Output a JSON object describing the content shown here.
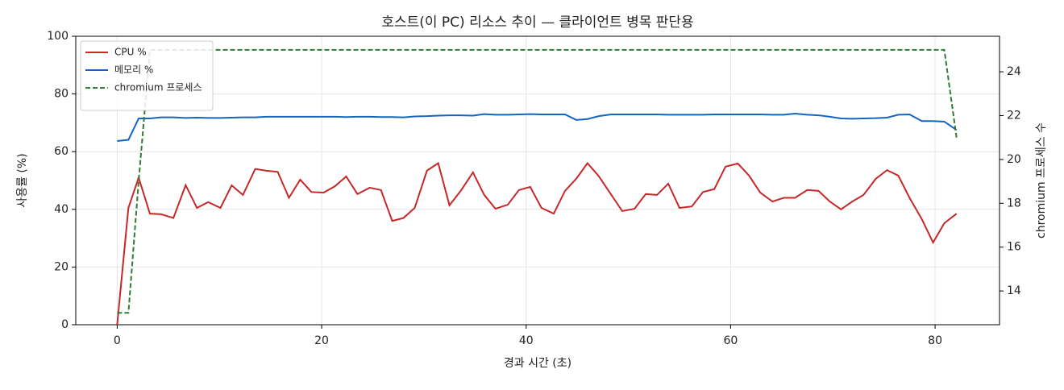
{
  "chart_data": {
    "type": "line",
    "title": "호스트(이 PC) 리소스 추이 — 클라이언트 병목 판단용",
    "xlabel": "경과 시간 (초)",
    "ylabel": "사용률 (%)",
    "y2label": "chromium 프로세스 수",
    "x": [
      0,
      1.1,
      2.1,
      3.2,
      4.3,
      5.5,
      6.7,
      7.8,
      8.9,
      10.1,
      11.2,
      12.3,
      13.5,
      14.6,
      15.7,
      16.8,
      17.9,
      19,
      20.2,
      21.3,
      22.4,
      23.5,
      24.7,
      25.8,
      26.9,
      28,
      29.1,
      30.3,
      31.4,
      32.5,
      33.6,
      34.8,
      35.9,
      37,
      38.2,
      39.3,
      40.4,
      41.5,
      42.7,
      43.8,
      44.9,
      46,
      47.1,
      48.3,
      49.4,
      50.6,
      51.7,
      52.8,
      53.9,
      55,
      56.2,
      57.3,
      58.4,
      59.5,
      60.7,
      61.8,
      62.9,
      64.1,
      65.2,
      66.3,
      67.5,
      68.6,
      69.7,
      70.8,
      71.9,
      73,
      74.2,
      75.3,
      76.4,
      77.5,
      78.7,
      79.8,
      80.9,
      82.1
    ],
    "series": [
      {
        "name": "CPU %",
        "color": "#c62828",
        "values": [
          0,
          40.5,
          51,
          38.5,
          38.3,
          37,
          48.4,
          40.5,
          42.5,
          40.5,
          48.3,
          45,
          54,
          53.4,
          53,
          44,
          50.3,
          46,
          45.8,
          48,
          51.4,
          45.3,
          47.5,
          46.7,
          36,
          37,
          40.5,
          53.4,
          56,
          41.4,
          46.4,
          52.8,
          45,
          40.2,
          41.6,
          46.7,
          47.8,
          40.5,
          38.5,
          46.4,
          50.6,
          56,
          51.5,
          45.2,
          39.4,
          40.2,
          45.3,
          45,
          48.9,
          40.5,
          41,
          46,
          47,
          54.8,
          55.9,
          51.7,
          45.8,
          42.7,
          44,
          44,
          46.7,
          46.4,
          42.7,
          40,
          42.7,
          45,
          50.6,
          53.6,
          51.7,
          44,
          36.6,
          28.5,
          35.2,
          38.5
        ]
      },
      {
        "name": "메모리 %",
        "color": "#1565c0",
        "values": [
          63.7,
          64.1,
          71.5,
          71.5,
          71.9,
          71.9,
          71.7,
          71.8,
          71.7,
          71.7,
          71.8,
          71.9,
          71.9,
          72.1,
          72.1,
          72.1,
          72.1,
          72.1,
          72.1,
          72.1,
          72,
          72.1,
          72.1,
          72,
          72,
          71.9,
          72.2,
          72.3,
          72.5,
          72.6,
          72.6,
          72.5,
          73,
          72.8,
          72.8,
          72.9,
          73,
          72.9,
          72.9,
          72.9,
          71,
          71.3,
          72.3,
          72.9,
          72.9,
          72.9,
          72.9,
          72.9,
          72.8,
          72.8,
          72.8,
          72.8,
          72.9,
          72.9,
          72.9,
          72.9,
          72.9,
          72.8,
          72.8,
          73.2,
          72.8,
          72.6,
          72.1,
          71.5,
          71.4,
          71.5,
          71.6,
          71.8,
          72.8,
          72.9,
          70.6,
          70.6,
          70.4,
          67.5
        ]
      },
      {
        "name": "chromium 프로세스",
        "color": "#2e7d32",
        "axis": "y2",
        "dashed": true,
        "values": [
          13,
          13,
          19,
          25,
          25,
          25,
          25,
          25,
          25,
          25,
          25,
          25,
          25,
          25,
          25,
          25,
          25,
          25,
          25,
          25,
          25,
          25,
          25,
          25,
          25,
          25,
          25,
          25,
          25,
          25,
          25,
          25,
          25,
          25,
          25,
          25,
          25,
          25,
          25,
          25,
          25,
          25,
          25,
          25,
          25,
          25,
          25,
          25,
          25,
          25,
          25,
          25,
          25,
          25,
          25,
          25,
          25,
          25,
          25,
          25,
          25,
          25,
          25,
          25,
          25,
          25,
          25,
          25,
          25,
          25,
          25,
          25,
          25,
          21
        ]
      }
    ],
    "xlim": [
      -4.05,
      86.3
    ],
    "xticks": [
      0,
      20,
      40,
      60,
      80
    ],
    "ylim": [
      0,
      100
    ],
    "yticks": [
      0,
      20,
      40,
      60,
      80,
      100
    ],
    "y2lim": [
      12.46,
      25.62
    ],
    "y2ticks": [
      14,
      16,
      18,
      20,
      22,
      24
    ],
    "grid": true,
    "legend": "upper left"
  }
}
